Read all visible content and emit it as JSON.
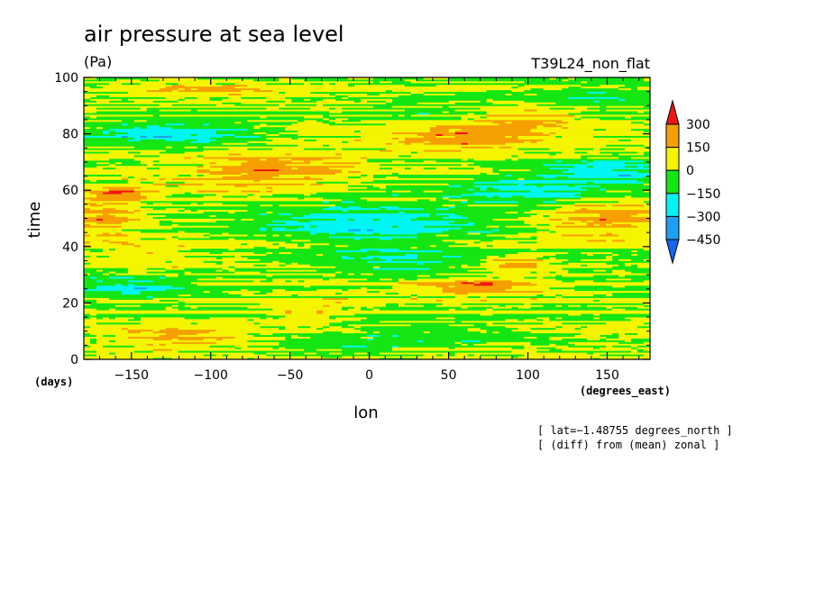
{
  "chart_data": {
    "type": "heatmap",
    "title": "air pressure at sea level",
    "units": "(Pa)",
    "experiment": "T39L24_non_flat",
    "xlabel": "lon",
    "xunit": "(degrees_east)",
    "ylabel": "time",
    "yunit": "(days)",
    "xlim": [
      -180,
      177
    ],
    "ylim": [
      0,
      100
    ],
    "x_ticks": [
      -150,
      -100,
      -50,
      0,
      50,
      100,
      150
    ],
    "x_tick_labels": [
      "−150",
      "−100",
      "−50",
      "0",
      "50",
      "100",
      "150"
    ],
    "y_ticks": [
      0,
      20,
      40,
      60,
      80,
      100
    ],
    "y_tick_labels": [
      "0",
      "20",
      "40",
      "60",
      "80",
      "100"
    ],
    "colorbar": {
      "levels": [
        300,
        150,
        0,
        -150,
        -300,
        -450
      ],
      "level_labels": [
        "300",
        "150",
        "0",
        "−150",
        "−300",
        "−450"
      ],
      "colors": [
        "#f01414",
        "#f5a000",
        "#f5f500",
        "#14e614",
        "#00f5f5",
        "#1ea0f0",
        "#1464f0"
      ]
    },
    "bands": [
      {
        "time_range": [
          0,
          5
        ],
        "pattern": "mixed",
        "dominant": [
          -150,
          150
        ]
      },
      {
        "time_range": [
          5,
          12
        ],
        "pattern": "positive west (-170 to -50, up to 300), negative 0 to 120",
        "dominant": [
          0,
          300
        ]
      },
      {
        "time_range": [
          12,
          22
        ],
        "pattern": "mixed green/yellow, orange near -60 to -20",
        "dominant": [
          -150,
          150
        ]
      },
      {
        "time_range": [
          22,
          30
        ],
        "pattern": "cyan at -180 to -120, orange/red 30 to 100",
        "dominant": [
          -300,
          300
        ]
      },
      {
        "time_range": [
          30,
          40
        ],
        "pattern": "yellow/orange west, green/cyan center, red near 80 to 100",
        "dominant": [
          -150,
          300
        ]
      },
      {
        "time_range": [
          40,
          55
        ],
        "pattern": "orange west (-180 to -140), cyan/blue -60 to 80, orange/red east 130 to 177",
        "dominant": [
          -450,
          300
        ]
      },
      {
        "time_range": [
          55,
          65
        ],
        "pattern": "red near -170 to -150, yellow/orange -130 to -20, cyan 50 to 150",
        "dominant": [
          -300,
          300
        ]
      },
      {
        "time_range": [
          65,
          73
        ],
        "pattern": "orange/red -110 to -20, cyan/blue 130 to 177",
        "dominant": [
          -300,
          300
        ]
      },
      {
        "time_range": [
          73,
          83
        ],
        "pattern": "blue/cyan -180 to -50, orange/red 20 to 100",
        "dominant": [
          -450,
          300
        ]
      },
      {
        "time_range": [
          83,
          92
        ],
        "pattern": "green/yellow, orange 70 to 120",
        "dominant": [
          -150,
          150
        ]
      },
      {
        "time_range": [
          92,
          100
        ],
        "pattern": "yellow/orange -150 to -50, green/cyan 100 to 177",
        "dominant": [
          -150,
          300
        ]
      }
    ]
  },
  "notes": {
    "lat": "[ lat=−1.48755 degrees_north ]",
    "diff": "[ (diff) from (mean) zonal ]"
  }
}
